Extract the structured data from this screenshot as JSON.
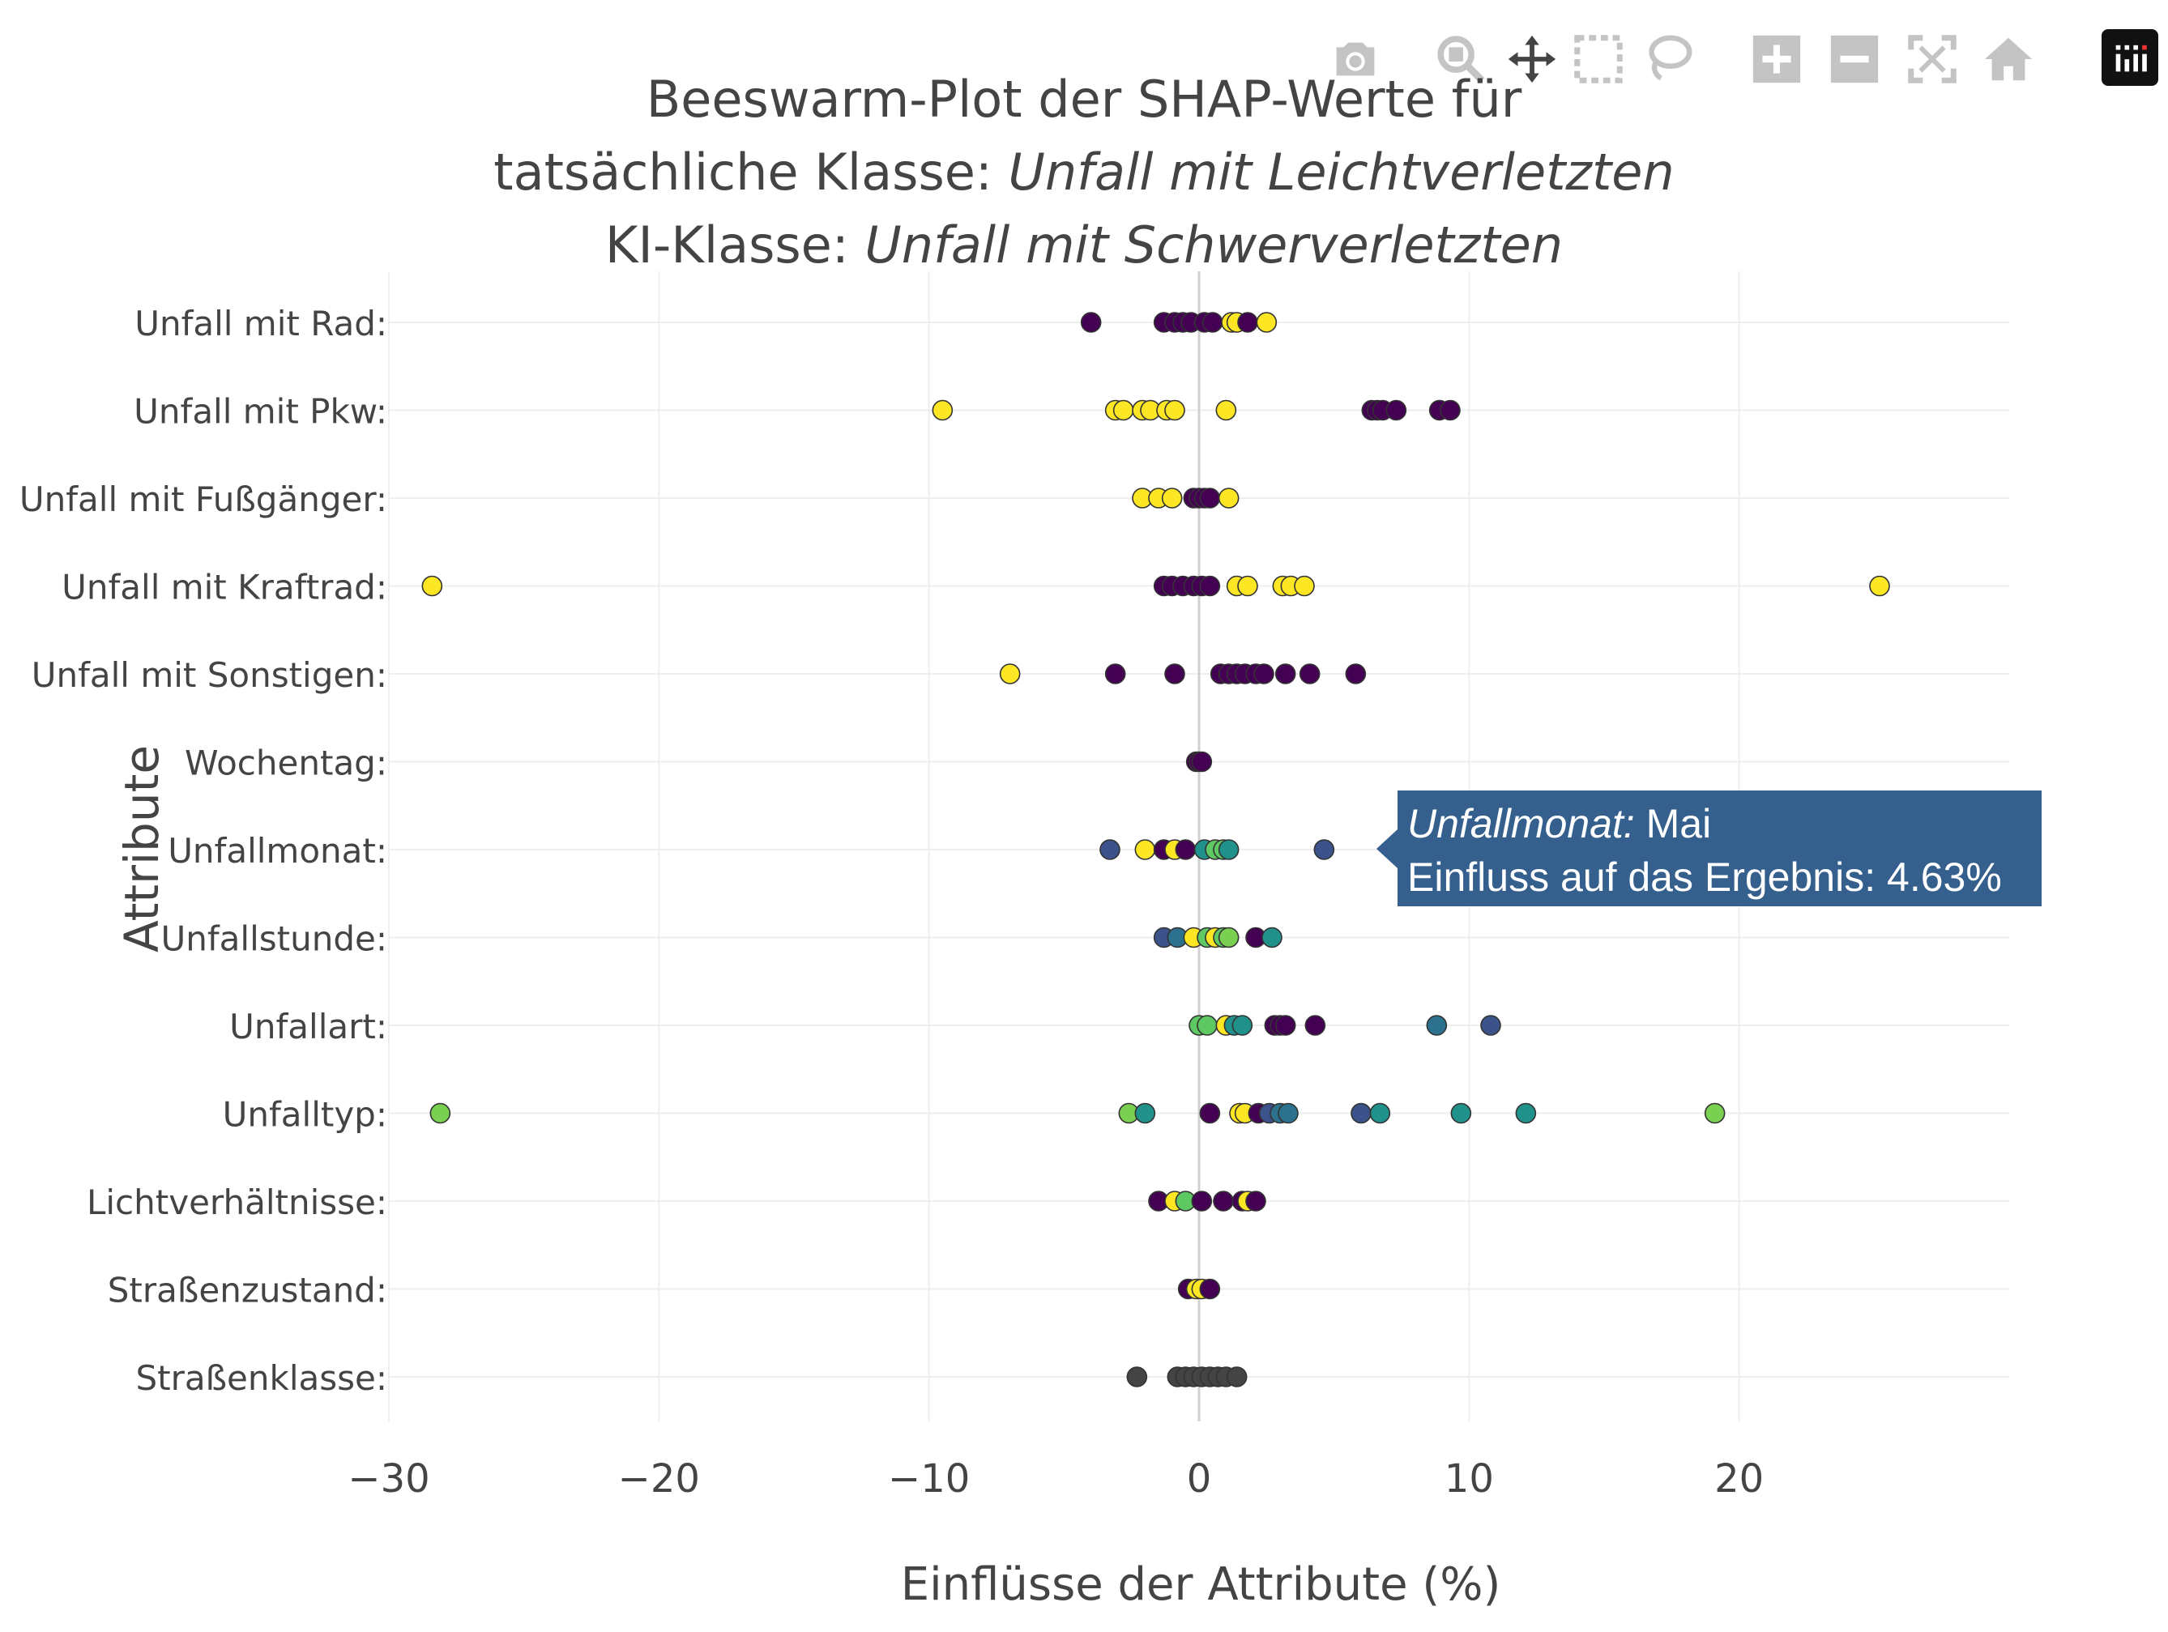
{
  "toolbar": {
    "icons": [
      "camera-icon",
      "zoom-icon",
      "pan-icon",
      "box-select-icon",
      "lasso-select-icon",
      "zoom-in-icon",
      "zoom-out-icon",
      "autoscale-icon",
      "reset-axes-icon",
      "plotly-logo-icon"
    ]
  },
  "colors": {
    "grid": "#eeeeee",
    "zeroline": "#d0d0d0",
    "marker_edge": "#333333",
    "text": "#444444",
    "tooltip_bg": "#355f8d"
  },
  "tooltip": {
    "feature": "Unfallmonat:",
    "value": "Mai",
    "label": "Einfluss auf das Ergebnis:",
    "percent": "4.63%",
    "anchor": {
      "feature_index": 6,
      "x": 4.63
    }
  },
  "chart_data": {
    "type": "scatter",
    "title": {
      "line1": "Beeswarm-Plot der SHAP-Werte für",
      "line2_prefix": "tatsächliche Klasse: ",
      "line2_value": "Unfall mit Leichtverletzten",
      "line3_prefix": "KI-Klasse: ",
      "line3_value": "Unfall mit Schwerverletzten"
    },
    "xlabel": "Einflüsse der Attribute (%)",
    "ylabel": "Attribute",
    "xlim": [
      -30,
      30
    ],
    "xticks": [
      -30,
      -20,
      -10,
      0,
      10,
      20
    ],
    "xtick_labels": [
      "−30",
      "−20",
      "−10",
      "0",
      "10",
      "20"
    ],
    "grid": true,
    "palette": {
      "p": "#440154",
      "i": "#3b528b",
      "b": "#2c728e",
      "t": "#21918c",
      "g": "#5ec962",
      "l": "#7ad151",
      "y": "#fde725",
      "k": "#444444"
    },
    "categories": [
      "Unfall mit Rad:",
      "Unfall mit Pkw:",
      "Unfall mit Fußgänger:",
      "Unfall mit Kraftrad:",
      "Unfall mit Sonstigen:",
      "Wochentag:",
      "Unfallmonat:",
      "Unfallstunde:",
      "Unfallart:",
      "Unfalltyp:",
      "Lichtverhältnisse:",
      "Straßenzustand:",
      "Straßenklasse:"
    ],
    "points": [
      [
        [
          -4.0,
          "p"
        ],
        [
          -1.3,
          "p"
        ],
        [
          -0.9,
          "p"
        ],
        [
          -0.6,
          "p"
        ],
        [
          -0.3,
          "p"
        ],
        [
          0.2,
          "p"
        ],
        [
          0.5,
          "p"
        ],
        [
          1.2,
          "y"
        ],
        [
          1.4,
          "y"
        ],
        [
          1.8,
          "p"
        ],
        [
          2.5,
          "y"
        ]
      ],
      [
        [
          -9.5,
          "y"
        ],
        [
          -3.1,
          "y"
        ],
        [
          -2.8,
          "y"
        ],
        [
          -2.1,
          "y"
        ],
        [
          -1.8,
          "y"
        ],
        [
          -1.2,
          "y"
        ],
        [
          -0.9,
          "y"
        ],
        [
          1.0,
          "y"
        ],
        [
          6.4,
          "p"
        ],
        [
          6.6,
          "p"
        ],
        [
          6.8,
          "p"
        ],
        [
          7.3,
          "p"
        ],
        [
          8.9,
          "p"
        ],
        [
          9.3,
          "p"
        ]
      ],
      [
        [
          -2.1,
          "y"
        ],
        [
          -1.5,
          "y"
        ],
        [
          -1.0,
          "y"
        ],
        [
          -0.2,
          "p"
        ],
        [
          0.0,
          "p"
        ],
        [
          0.2,
          "p"
        ],
        [
          0.4,
          "p"
        ],
        [
          1.1,
          "y"
        ]
      ],
      [
        [
          -28.4,
          "y"
        ],
        [
          -1.3,
          "p"
        ],
        [
          -1.0,
          "p"
        ],
        [
          -0.6,
          "p"
        ],
        [
          -0.2,
          "p"
        ],
        [
          0.1,
          "p"
        ],
        [
          0.4,
          "p"
        ],
        [
          1.4,
          "y"
        ],
        [
          1.8,
          "y"
        ],
        [
          3.1,
          "y"
        ],
        [
          3.4,
          "y"
        ],
        [
          3.9,
          "y"
        ],
        [
          25.2,
          "y"
        ]
      ],
      [
        [
          -7.0,
          "y"
        ],
        [
          -3.1,
          "p"
        ],
        [
          -0.9,
          "p"
        ],
        [
          0.8,
          "p"
        ],
        [
          1.1,
          "p"
        ],
        [
          1.4,
          "p"
        ],
        [
          1.7,
          "p"
        ],
        [
          2.1,
          "p"
        ],
        [
          2.4,
          "p"
        ],
        [
          3.2,
          "p"
        ],
        [
          4.1,
          "p"
        ],
        [
          5.8,
          "p"
        ]
      ],
      [
        [
          -0.1,
          "p"
        ],
        [
          0.0,
          "p"
        ],
        [
          0.1,
          "p"
        ]
      ],
      [
        [
          -3.3,
          "i"
        ],
        [
          -2.0,
          "y"
        ],
        [
          -1.3,
          "p"
        ],
        [
          -0.9,
          "y"
        ],
        [
          -0.5,
          "p"
        ],
        [
          0.2,
          "t"
        ],
        [
          0.6,
          "g"
        ],
        [
          0.9,
          "g"
        ],
        [
          1.1,
          "t"
        ],
        [
          4.63,
          "i"
        ]
      ],
      [
        [
          -1.3,
          "i"
        ],
        [
          -0.8,
          "b"
        ],
        [
          -0.2,
          "y"
        ],
        [
          0.3,
          "g"
        ],
        [
          0.6,
          "y"
        ],
        [
          0.9,
          "g"
        ],
        [
          1.1,
          "l"
        ],
        [
          2.1,
          "p"
        ],
        [
          2.7,
          "t"
        ]
      ],
      [
        [
          0.0,
          "g"
        ],
        [
          0.3,
          "g"
        ],
        [
          1.0,
          "y"
        ],
        [
          1.3,
          "t"
        ],
        [
          1.6,
          "t"
        ],
        [
          2.8,
          "p"
        ],
        [
          3.0,
          "p"
        ],
        [
          3.2,
          "p"
        ],
        [
          4.3,
          "p"
        ],
        [
          8.8,
          "b"
        ],
        [
          10.8,
          "i"
        ]
      ],
      [
        [
          -28.1,
          "l"
        ],
        [
          -2.6,
          "l"
        ],
        [
          -2.0,
          "t"
        ],
        [
          0.4,
          "p"
        ],
        [
          1.5,
          "y"
        ],
        [
          1.7,
          "y"
        ],
        [
          2.2,
          "p"
        ],
        [
          2.6,
          "i"
        ],
        [
          3.0,
          "b"
        ],
        [
          3.3,
          "b"
        ],
        [
          6.0,
          "i"
        ],
        [
          6.7,
          "t"
        ],
        [
          9.7,
          "t"
        ],
        [
          12.1,
          "t"
        ],
        [
          19.1,
          "l"
        ]
      ],
      [
        [
          -1.5,
          "p"
        ],
        [
          -0.9,
          "y"
        ],
        [
          -0.5,
          "g"
        ],
        [
          0.1,
          "p"
        ],
        [
          0.9,
          "p"
        ],
        [
          1.6,
          "p"
        ],
        [
          1.8,
          "y"
        ],
        [
          2.1,
          "p"
        ]
      ],
      [
        [
          -0.4,
          "p"
        ],
        [
          -0.1,
          "y"
        ],
        [
          0.1,
          "y"
        ],
        [
          0.4,
          "p"
        ]
      ],
      [
        [
          -2.3,
          "k"
        ],
        [
          -0.8,
          "k"
        ],
        [
          -0.5,
          "k"
        ],
        [
          -0.2,
          "k"
        ],
        [
          0.1,
          "k"
        ],
        [
          0.4,
          "k"
        ],
        [
          0.7,
          "k"
        ],
        [
          1.0,
          "k"
        ],
        [
          1.4,
          "k"
        ]
      ]
    ]
  }
}
